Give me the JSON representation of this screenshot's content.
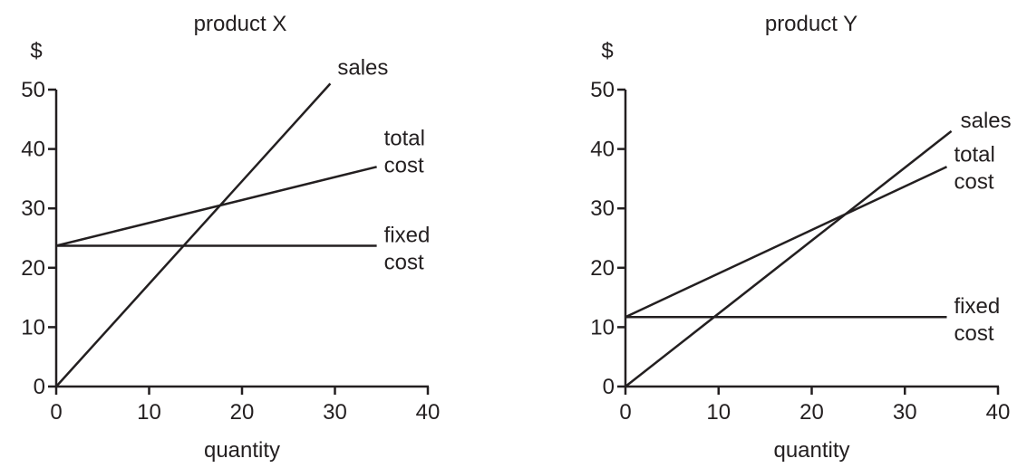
{
  "chart_data": [
    {
      "type": "line",
      "title": "product X",
      "ylabel": "$",
      "xlabel": "quantity",
      "xlim": [
        0,
        40
      ],
      "ylim": [
        0,
        50
      ],
      "xticks": [
        0,
        10,
        20,
        30,
        40
      ],
      "yticks": [
        0,
        10,
        20,
        30,
        40,
        50
      ],
      "grid": false,
      "series": [
        {
          "name": "sales",
          "label_lines": [
            "sales"
          ],
          "x": [
            0,
            29.5
          ],
          "y": [
            0,
            51
          ]
        },
        {
          "name": "total cost",
          "label_lines": [
            "total",
            "cost"
          ],
          "x": [
            0,
            34.5
          ],
          "y": [
            23.7,
            37
          ]
        },
        {
          "name": "fixed cost",
          "label_lines": [
            "fixed",
            "cost"
          ],
          "x": [
            0,
            34.5
          ],
          "y": [
            23.7,
            23.7
          ]
        }
      ]
    },
    {
      "type": "line",
      "title": "product Y",
      "ylabel": "$",
      "xlabel": "quantity",
      "xlim": [
        0,
        40
      ],
      "ylim": [
        0,
        50
      ],
      "xticks": [
        0,
        10,
        20,
        30,
        40
      ],
      "yticks": [
        0,
        10,
        20,
        30,
        40,
        50
      ],
      "grid": false,
      "series": [
        {
          "name": "sales",
          "label_lines": [
            "sales"
          ],
          "x": [
            0,
            35
          ],
          "y": [
            0,
            43
          ]
        },
        {
          "name": "total cost",
          "label_lines": [
            "total",
            "cost"
          ],
          "x": [
            0,
            34.5
          ],
          "y": [
            11.7,
            37
          ]
        },
        {
          "name": "fixed cost",
          "label_lines": [
            "fixed",
            "cost"
          ],
          "x": [
            0,
            34.5
          ],
          "y": [
            11.7,
            11.7
          ]
        }
      ]
    }
  ]
}
